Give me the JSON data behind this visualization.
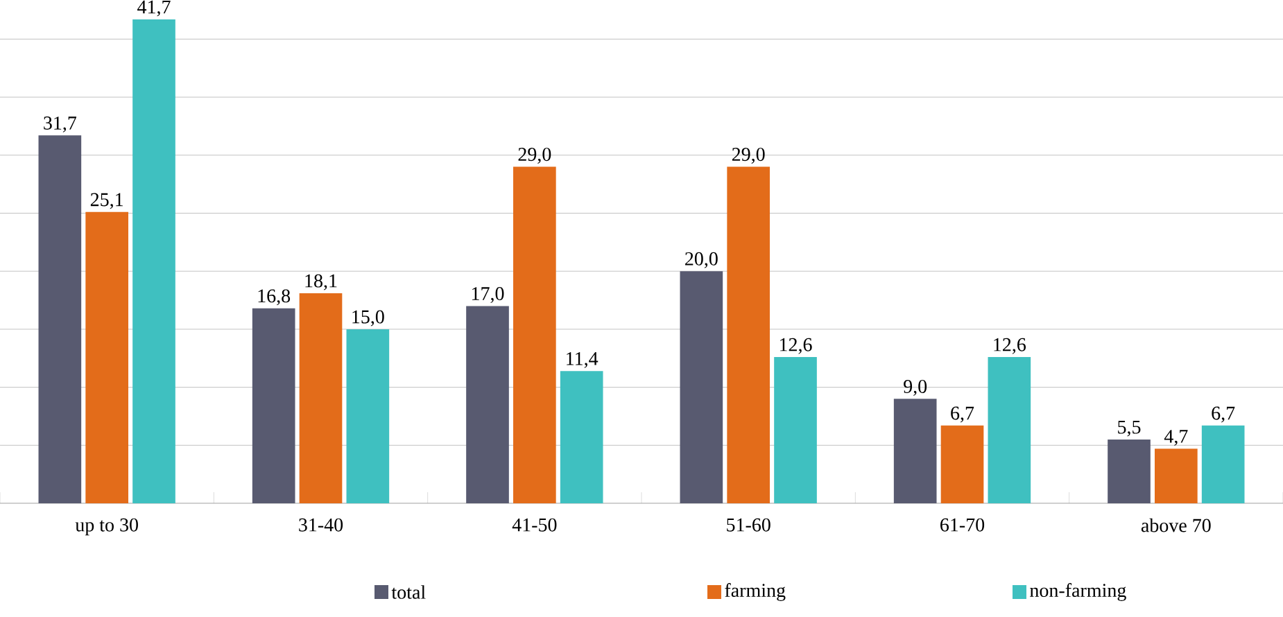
{
  "chart_data": {
    "type": "bar",
    "categories": [
      "up to 30",
      "31-40",
      "41-50",
      "51-60",
      "61-70",
      "above 70"
    ],
    "series": [
      {
        "name": "total",
        "color": "#585a70",
        "values": [
          31.7,
          16.8,
          17.0,
          20.0,
          9.0,
          5.5
        ],
        "value_labels": [
          "31,7",
          "16,8",
          "17,0",
          "20,0",
          "9,0",
          "5,5"
        ]
      },
      {
        "name": "farming",
        "color": "#e36c1a",
        "values": [
          25.1,
          18.1,
          29.0,
          29.0,
          6.7,
          4.7
        ],
        "value_labels": [
          "25,1",
          "18,1",
          "29,0",
          "29,0",
          "6,7",
          "4,7"
        ]
      },
      {
        "name": "non-farming",
        "color": "#3fc0c0",
        "values": [
          41.7,
          15.0,
          11.4,
          12.6,
          12.6,
          6.7
        ],
        "value_labels": [
          "41,7",
          "15,0",
          "11,4",
          "12,6",
          "12,6",
          "6,7"
        ]
      }
    ],
    "tick_labels": "x",
    "grid": "y",
    "legend": "bottom"
  }
}
